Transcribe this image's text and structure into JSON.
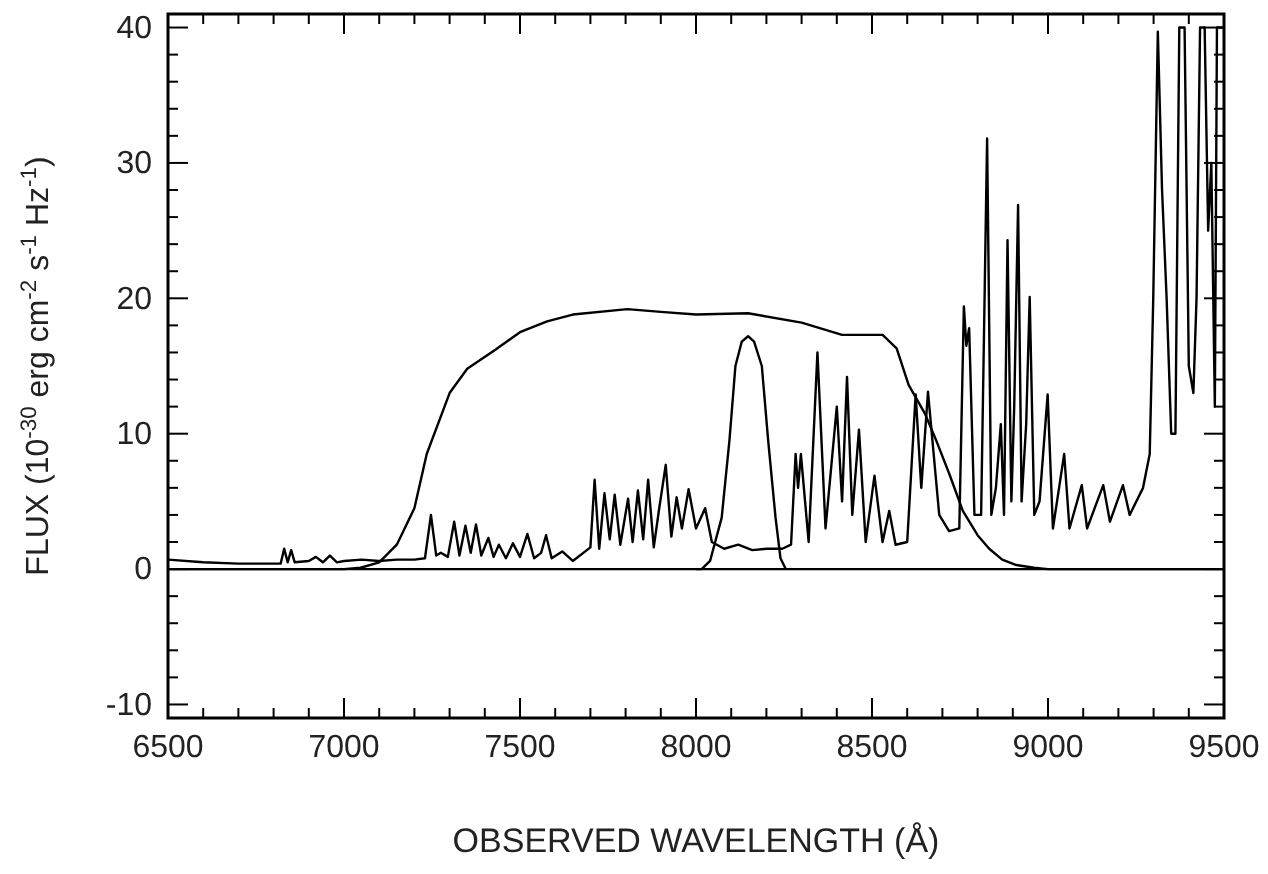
{
  "chart_data": {
    "type": "line",
    "xlabel": "OBSERVED WAVELENGTH (Å)",
    "ylabel": "FLUX (10$^{-30}$ erg cm$^{-2}$ s$^{-1}$ Hz$^{-1}$)",
    "xlim": [
      6500,
      9500
    ],
    "ylim": [
      -11,
      41
    ],
    "xticks": [
      6500,
      {
        "value": 6600,
        "label": null
      },
      {
        "value": 6700,
        "label": null
      },
      {
        "value": 6800,
        "label": null
      },
      {
        "value": 6900,
        "label": null
      },
      7000,
      {
        "value": 7100,
        "label": null
      },
      {
        "value": 7200,
        "label": null
      },
      {
        "value": 7300,
        "label": null
      },
      {
        "value": 7400,
        "label": null
      },
      7500,
      {
        "value": 7600,
        "label": null
      },
      {
        "value": 7700,
        "label": null
      },
      {
        "value": 7800,
        "label": null
      },
      {
        "value": 7900,
        "label": null
      },
      8000,
      {
        "value": 8100,
        "label": null
      },
      {
        "value": 8200,
        "label": null
      },
      {
        "value": 8300,
        "label": null
      },
      {
        "value": 8400,
        "label": null
      },
      8500,
      {
        "value": 8600,
        "label": null
      },
      {
        "value": 8700,
        "label": null
      },
      {
        "value": 8800,
        "label": null
      },
      {
        "value": 8900,
        "label": null
      },
      9000,
      {
        "value": 9100,
        "label": null
      },
      {
        "value": 9200,
        "label": null
      },
      {
        "value": 9300,
        "label": null
      },
      {
        "value": 9400,
        "label": null
      },
      9500
    ],
    "yticks": [
      -10,
      {
        "value": -8,
        "label": null
      },
      {
        "value": -6,
        "label": null
      },
      {
        "value": -4,
        "label": null
      },
      {
        "value": -2,
        "label": null
      },
      0,
      {
        "value": 2,
        "label": null
      },
      {
        "value": 4,
        "label": null
      },
      {
        "value": 6,
        "label": null
      },
      {
        "value": 8,
        "label": null
      },
      10,
      {
        "value": 12,
        "label": null
      },
      {
        "value": 14,
        "label": null
      },
      {
        "value": 16,
        "label": null
      },
      {
        "value": 18,
        "label": null
      },
      20,
      {
        "value": 22,
        "label": null
      },
      {
        "value": 24,
        "label": null
      },
      {
        "value": 26,
        "label": null
      },
      {
        "value": 28,
        "label": null
      },
      30,
      {
        "value": 32,
        "label": null
      },
      {
        "value": 34,
        "label": null
      },
      {
        "value": 36,
        "label": null
      },
      {
        "value": 38,
        "label": null
      },
      40
    ],
    "ref_lines": [
      {
        "axis": "y",
        "value": 0,
        "color": "#000000"
      }
    ],
    "grid": false,
    "marker": "none",
    "line_style": "solid",
    "series": [
      {
        "color": "#000000",
        "x": [
          6500,
          6600,
          6700,
          6800,
          6820,
          6830,
          6840,
          6850,
          6860,
          6900,
          6920,
          6940,
          6960,
          6980,
          7000,
          7050,
          7100,
          7150,
          7200,
          7230,
          7247,
          7262,
          7275,
          7295,
          7313,
          7328,
          7345,
          7360,
          7375,
          7390,
          7410,
          7425,
          7440,
          7460,
          7480,
          7500,
          7521,
          7540,
          7560,
          7574,
          7590,
          7620,
          7650,
          7690,
          7700,
          7712,
          7725,
          7740,
          7755,
          7769,
          7785,
          7807,
          7820,
          7835,
          7850,
          7864,
          7880,
          7895,
          7914,
          7930,
          7945,
          7960,
          7979,
          8000,
          8026,
          8045,
          8080,
          8120,
          8160,
          8200,
          8245,
          8270,
          8283,
          8290,
          8298,
          8320,
          8345,
          8368,
          8400,
          8415,
          8429,
          8444,
          8463,
          8482,
          8507,
          8530,
          8549,
          8567,
          8600,
          8624,
          8640,
          8659,
          8691,
          8719,
          8748,
          8761,
          8768,
          8776,
          8791,
          8810,
          8827,
          8839,
          8852,
          8866,
          8875,
          8885,
          8896,
          8904,
          8915,
          8925,
          8938,
          8948,
          8961,
          8976,
          8999,
          9014,
          9046,
          9061,
          9096,
          9111,
          9157,
          9176,
          9213,
          9232,
          9270,
          9289,
          9299,
          9312,
          9324,
          9337,
          9350,
          9362,
          9373,
          9388,
          9400,
          9413,
          9422,
          9432,
          9445,
          9455,
          9464,
          9474,
          9480,
          9490,
          9500
        ],
        "values": [
          0.7,
          0.5,
          0.4,
          0.4,
          0.4,
          1.5,
          0.5,
          1.4,
          0.5,
          0.6,
          0.9,
          0.5,
          1.0,
          0.5,
          0.6,
          0.7,
          0.6,
          0.7,
          0.7,
          0.8,
          4.0,
          1.0,
          1.2,
          0.9,
          3.5,
          1.0,
          3.2,
          1.2,
          3.3,
          1.0,
          2.3,
          0.9,
          1.8,
          0.8,
          1.9,
          0.9,
          2.6,
          0.8,
          1.2,
          2.5,
          0.8,
          1.3,
          0.6,
          1.4,
          1.6,
          6.6,
          1.5,
          5.6,
          2.2,
          5.5,
          1.8,
          5.2,
          2.0,
          5.8,
          2.2,
          6.6,
          1.6,
          4.4,
          7.7,
          2.4,
          5.3,
          3.0,
          5.9,
          3.0,
          4.5,
          2.0,
          1.5,
          1.8,
          1.4,
          1.5,
          1.5,
          1.8,
          8.5,
          6.0,
          8.5,
          2.0,
          16.0,
          3.0,
          12.0,
          5.0,
          14.2,
          4.0,
          10.3,
          2.0,
          6.9,
          2.0,
          4.3,
          1.8,
          2.0,
          12.9,
          6.0,
          13.1,
          4.0,
          2.8,
          3.0,
          19.4,
          16.5,
          17.8,
          4.0,
          4.0,
          31.8,
          4.0,
          6.0,
          10.7,
          4.0,
          24.3,
          5.0,
          12.0,
          26.9,
          5.0,
          10.7,
          20.1,
          4.0,
          5.0,
          12.9,
          3.0,
          8.5,
          3.0,
          6.2,
          3.0,
          6.2,
          3.5,
          6.2,
          4.0,
          6.0,
          8.5,
          20.0,
          39.7,
          28.0,
          20.0,
          10.0,
          10.0,
          40.0,
          40.0,
          15.0,
          13.0,
          20.0,
          40.0,
          40.0,
          25.0,
          30.0,
          12.0,
          40.0,
          40.0,
          40.0
        ]
      },
      {
        "color": "#000000",
        "x": [
          6500,
          6800,
          7000,
          7047,
          7100,
          7150,
          7200,
          7235,
          7300,
          7350,
          7430,
          7500,
          7577,
          7650,
          7805,
          7900,
          8000,
          8148,
          8300,
          8415,
          8530,
          8570,
          8604,
          8650,
          8684,
          8720,
          8758,
          8800,
          8833,
          8870,
          8910,
          8960,
          9000,
          9500
        ],
        "values": [
          0,
          0,
          0,
          0.1,
          0.5,
          1.8,
          4.5,
          8.5,
          13.0,
          14.8,
          16.2,
          17.5,
          18.3,
          18.8,
          19.2,
          19.0,
          18.8,
          18.9,
          18.2,
          17.3,
          17.3,
          16.3,
          13.6,
          11.5,
          9.4,
          7.0,
          4.3,
          2.5,
          1.5,
          0.7,
          0.3,
          0.1,
          0,
          0
        ]
      },
      {
        "color": "#000000",
        "x": [
          8000,
          8016,
          8040,
          8073,
          8095,
          8112,
          8130,
          8148,
          8165,
          8187,
          8205,
          8226,
          8240,
          8255
        ],
        "values": [
          0,
          0,
          0.6,
          3.8,
          9.5,
          15.0,
          16.8,
          17.2,
          16.8,
          15.0,
          9.5,
          3.8,
          0.8,
          0
        ]
      }
    ]
  }
}
